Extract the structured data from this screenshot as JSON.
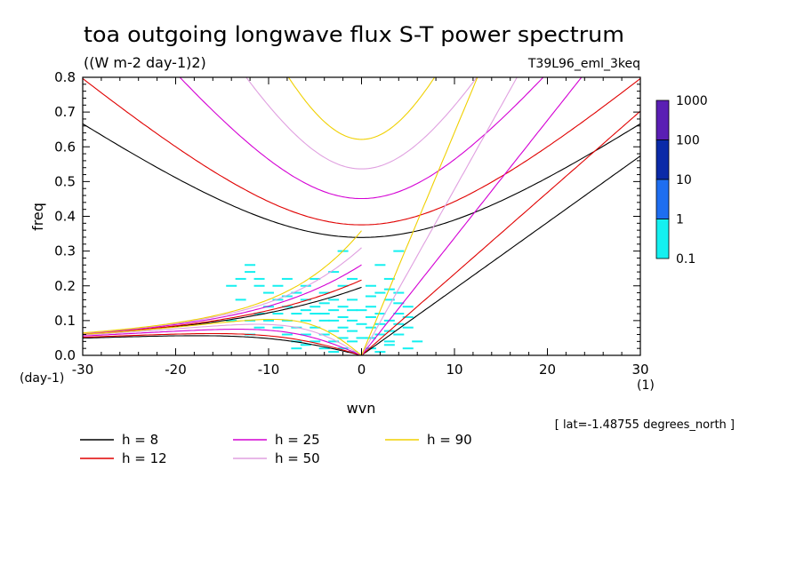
{
  "title": "toa outgoing longwave flux S-T power spectrum",
  "units": "((W m-2 day-1)2)",
  "run_id": "T39L96_eml_3keq",
  "lat_note": "[ lat=-1.48755 degrees_north ]",
  "chart_data": {
    "type": "heatmap",
    "xlabel": "wvn",
    "ylabel": "freq",
    "x_unit": "(1)",
    "y_unit": "(day-1)",
    "xlim": [
      -30,
      30
    ],
    "ylim": [
      0,
      0.8
    ],
    "x_ticks": [
      -30,
      -20,
      -10,
      0,
      10,
      20,
      30
    ],
    "x_tick_labels": [
      "-30",
      "-20",
      "-10",
      "0",
      "10",
      "20",
      "30"
    ],
    "y_ticks": [
      0,
      0.1,
      0.2,
      0.3,
      0.4,
      0.5,
      0.6,
      0.7,
      0.8
    ],
    "y_tick_labels": [
      "0.0",
      "0.1",
      "0.2",
      "0.3",
      "0.4",
      "0.5",
      "0.6",
      "0.7",
      "0.8"
    ],
    "colorbar": {
      "labels": [
        "1000",
        "100",
        "10",
        "1",
        "0.1"
      ],
      "levels": [
        1000,
        100,
        10,
        1,
        0.1
      ],
      "colors": [
        "#5a1fb4",
        "#0a2aa8",
        "#1e6ef0",
        "#14f0f0"
      ]
    },
    "dispersion_curves": [
      {
        "label": "h = 8",
        "h": 8,
        "color": "#000000"
      },
      {
        "label": "h = 12",
        "h": 12,
        "color": "#e00000"
      },
      {
        "label": "h = 25",
        "h": 25,
        "color": "#d400d4"
      },
      {
        "label": "h = 50",
        "h": 50,
        "color": "#e0a0e0"
      },
      {
        "label": "h = 90",
        "h": 90,
        "color": "#f0d000"
      }
    ],
    "power_points": [
      [
        -12,
        0.26
      ],
      [
        -12,
        0.24
      ],
      [
        -11,
        0.22
      ],
      [
        -11,
        0.2
      ],
      [
        -10,
        0.18
      ],
      [
        -9,
        0.2
      ],
      [
        -9,
        0.16
      ],
      [
        -8,
        0.22
      ],
      [
        -8,
        0.14
      ],
      [
        -7,
        0.18
      ],
      [
        -7,
        0.12
      ],
      [
        -6,
        0.2
      ],
      [
        -6,
        0.16
      ],
      [
        -6,
        0.1
      ],
      [
        -5,
        0.22
      ],
      [
        -5,
        0.14
      ],
      [
        -5,
        0.08
      ],
      [
        -4,
        0.18
      ],
      [
        -4,
        0.12
      ],
      [
        -4,
        0.06
      ],
      [
        -3,
        0.24
      ],
      [
        -3,
        0.16
      ],
      [
        -3,
        0.1
      ],
      [
        -3,
        0.04
      ],
      [
        -2,
        0.2
      ],
      [
        -2,
        0.14
      ],
      [
        -2,
        0.08
      ],
      [
        -2,
        0.02
      ],
      [
        -1,
        0.22
      ],
      [
        -1,
        0.16
      ],
      [
        -1,
        0.1
      ],
      [
        -1,
        0.04
      ],
      [
        1,
        0.2
      ],
      [
        1,
        0.14
      ],
      [
        1,
        0.08
      ],
      [
        1,
        0.02
      ],
      [
        2,
        0.18
      ],
      [
        2,
        0.12
      ],
      [
        2,
        0.06
      ],
      [
        3,
        0.22
      ],
      [
        3,
        0.16
      ],
      [
        3,
        0.1
      ],
      [
        3,
        0.04
      ],
      [
        4,
        0.18
      ],
      [
        4,
        0.12
      ],
      [
        4,
        0.06
      ],
      [
        5,
        0.14
      ],
      [
        5,
        0.08
      ],
      [
        5,
        0.02
      ],
      [
        -9,
        0.08
      ],
      [
        -8,
        0.06
      ],
      [
        -7,
        0.04
      ],
      [
        -6,
        0.06
      ],
      [
        -10,
        0.1
      ],
      [
        -11,
        0.12
      ],
      [
        -13,
        0.16
      ],
      [
        -14,
        0.1
      ],
      [
        -7,
        0.08
      ],
      [
        -5,
        0.04
      ],
      [
        -4,
        0.02
      ],
      [
        2,
        0.26
      ],
      [
        4,
        0.3
      ],
      [
        6,
        0.04
      ],
      [
        -2,
        0.3
      ],
      [
        -12,
        0.06
      ],
      [
        -8,
        0.1
      ],
      [
        -6,
        0.03
      ],
      [
        -3,
        0.07
      ],
      [
        -1,
        0.07
      ],
      [
        1,
        0.11
      ],
      [
        3,
        0.07
      ],
      [
        -4,
        0.1
      ],
      [
        -2,
        0.11
      ],
      [
        0,
        0.13
      ],
      [
        0,
        0.09
      ],
      [
        0,
        0.05
      ],
      [
        -9,
        0.12
      ],
      [
        -10,
        0.14
      ],
      [
        -5,
        0.12
      ],
      [
        -3,
        0.13
      ],
      [
        -1,
        0.13
      ],
      [
        2,
        0.09
      ],
      [
        4,
        0.09
      ],
      [
        -7,
        0.02
      ],
      [
        -2,
        0.05
      ],
      [
        1,
        0.05
      ],
      [
        3,
        0.03
      ],
      [
        -6,
        0.13
      ],
      [
        -8,
        0.17
      ],
      [
        -4,
        0.15
      ],
      [
        1,
        0.17
      ],
      [
        3,
        0.19
      ],
      [
        -11,
        0.08
      ],
      [
        -12,
        0.1
      ],
      [
        -14,
        0.2
      ],
      [
        -13,
        0.22
      ],
      [
        4,
        0.15
      ],
      [
        5,
        0.11
      ],
      [
        -3,
        0.01
      ],
      [
        -1,
        0.01
      ],
      [
        2,
        0.01
      ]
    ]
  }
}
